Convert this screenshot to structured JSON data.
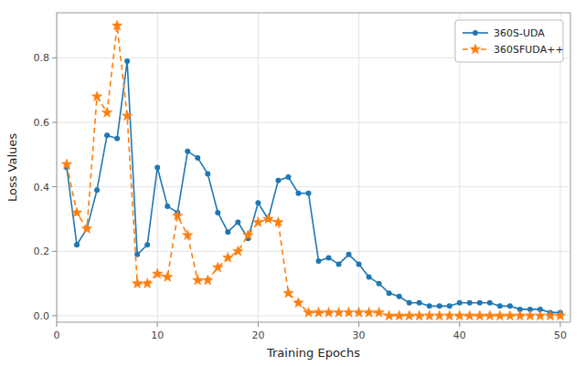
{
  "chart_data": {
    "type": "line",
    "xlabel": "Training Epochs",
    "ylabel": "Loss Values",
    "x": [
      1,
      2,
      3,
      4,
      5,
      6,
      7,
      8,
      9,
      10,
      11,
      12,
      13,
      14,
      15,
      16,
      17,
      18,
      19,
      20,
      21,
      22,
      23,
      24,
      25,
      26,
      27,
      28,
      29,
      30,
      31,
      32,
      33,
      34,
      35,
      36,
      37,
      38,
      39,
      40,
      41,
      42,
      43,
      44,
      45,
      46,
      47,
      48,
      49,
      50
    ],
    "series": [
      {
        "name": "360S-UDA",
        "color": "#1f77b4",
        "marker": "circle",
        "line_style": "solid",
        "values": [
          0.46,
          0.22,
          0.27,
          0.39,
          0.56,
          0.55,
          0.79,
          0.19,
          0.22,
          0.46,
          0.34,
          0.32,
          0.51,
          0.49,
          0.44,
          0.32,
          0.26,
          0.29,
          0.24,
          0.35,
          0.3,
          0.42,
          0.43,
          0.38,
          0.38,
          0.17,
          0.18,
          0.16,
          0.19,
          0.16,
          0.12,
          0.1,
          0.07,
          0.06,
          0.04,
          0.04,
          0.03,
          0.03,
          0.03,
          0.04,
          0.04,
          0.04,
          0.04,
          0.03,
          0.03,
          0.02,
          0.02,
          0.02,
          0.01,
          0.01
        ]
      },
      {
        "name": "360SFUDA++",
        "color": "#ff7f0e",
        "marker": "star",
        "line_style": "dashed",
        "values": [
          0.47,
          0.32,
          0.27,
          0.68,
          0.63,
          0.9,
          0.62,
          0.1,
          0.1,
          0.13,
          0.12,
          0.31,
          0.25,
          0.11,
          0.11,
          0.15,
          0.18,
          0.2,
          0.25,
          0.29,
          0.3,
          0.29,
          0.07,
          0.04,
          0.01,
          0.01,
          0.01,
          0.01,
          0.01,
          0.01,
          0.01,
          0.01,
          0.0,
          0.0,
          0.0,
          0.0,
          0.0,
          0.0,
          0.0,
          0.0,
          0.0,
          0.0,
          0.0,
          0.0,
          0.0,
          0.0,
          0.0,
          0.0,
          0.0,
          0.0
        ]
      }
    ],
    "xlim": [
      0,
      51
    ],
    "ylim": [
      -0.02,
      0.94
    ],
    "xticks": [
      0,
      10,
      20,
      30,
      40,
      50
    ],
    "yticks": [
      {
        "value": 0.0,
        "label": "0.0"
      },
      0.2,
      0.4,
      0.6,
      0.8
    ],
    "grid": true,
    "legend": "upper-right"
  }
}
